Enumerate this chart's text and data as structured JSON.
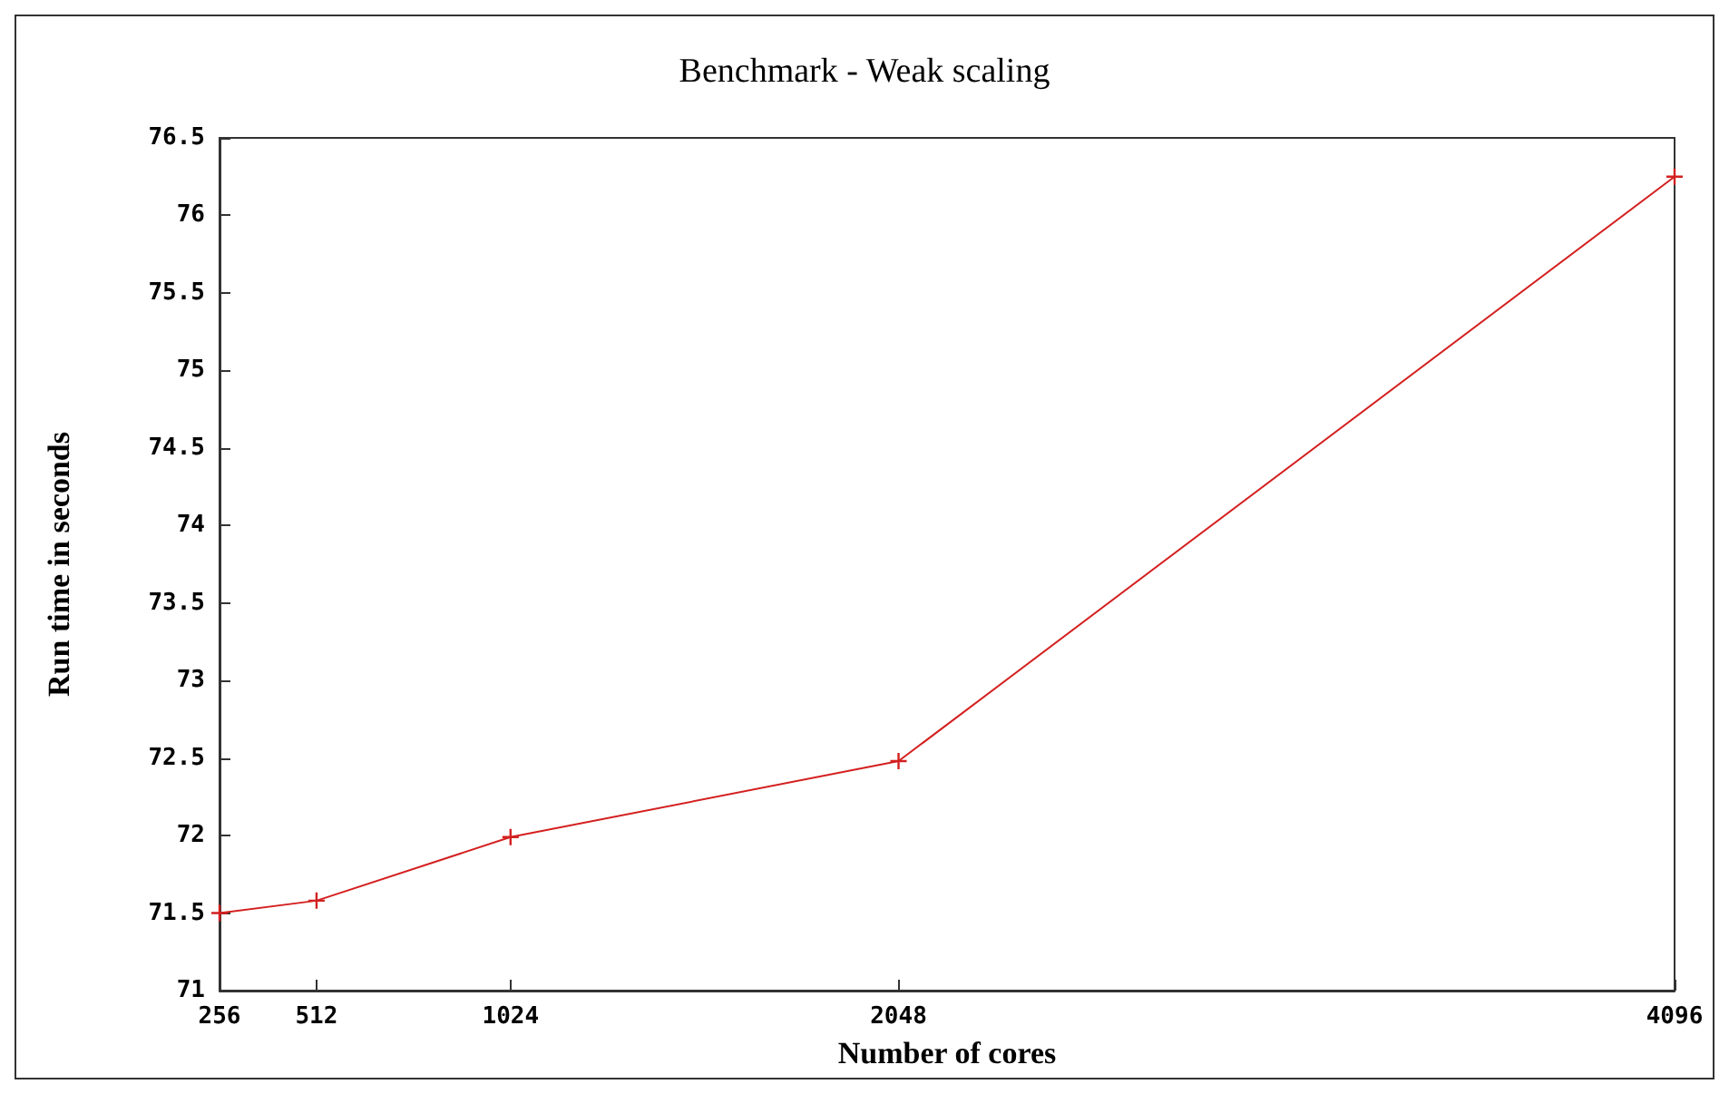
{
  "chart_data": {
    "type": "line",
    "title": "Benchmark - Weak scaling",
    "xlabel": "Number of cores",
    "ylabel": "Run time in seconds",
    "x": [
      256,
      512,
      1024,
      2048,
      4096
    ],
    "series": [
      {
        "color": "#d42020",
        "values": [
          71.5,
          71.58,
          71.99,
          72.48,
          76.25
        ]
      }
    ],
    "xlim": [
      256,
      4096
    ],
    "xticks": [
      256,
      512,
      1024,
      2048,
      4096
    ],
    "ylim": [
      71,
      76.5
    ],
    "yticks": [
      71,
      71.5,
      72,
      72.5,
      73,
      73.5,
      74,
      74.5,
      75,
      75.5,
      76,
      76.5
    ],
    "grid": false,
    "marker": "cross",
    "line_style": "solid"
  }
}
